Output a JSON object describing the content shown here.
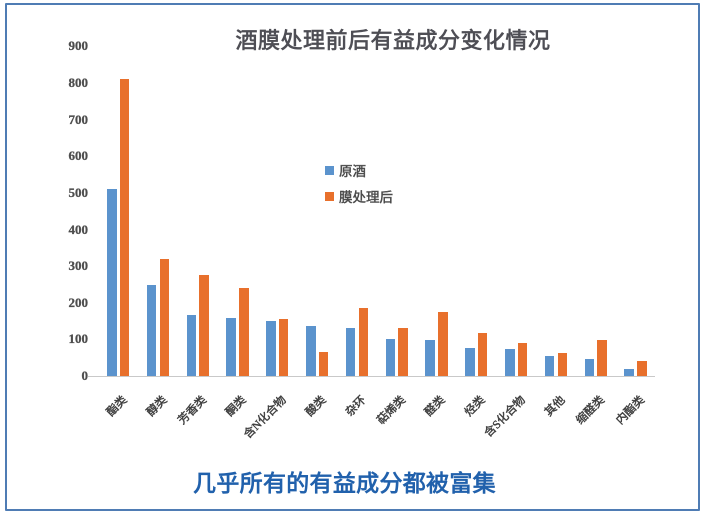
{
  "chart_data": {
    "type": "bar",
    "title": "酒膜处理前后有益成分变化情况",
    "categories": [
      "酯类",
      "醇类",
      "芳香类",
      "酮类",
      "含N化合物",
      "酸类",
      "杂环",
      "萜烯类",
      "醛类",
      "烃类",
      "含S化合物",
      "其他",
      "缩醛类",
      "内酯类"
    ],
    "series": [
      {
        "name": "原酒",
        "color": "#5b93cd",
        "values": [
          510,
          248,
          166,
          158,
          150,
          136,
          132,
          102,
          97,
          77,
          75,
          55,
          47,
          18
        ]
      },
      {
        "name": "膜处理后",
        "color": "#e8702c",
        "values": [
          812,
          320,
          277,
          240,
          157,
          66,
          186,
          130,
          174,
          117,
          91,
          64,
          98,
          42
        ]
      }
    ],
    "xlabel": "",
    "ylabel": "",
    "ylim": [
      0,
      900
    ],
    "ytick_step": 100,
    "grid": false,
    "legend_position": "inside-upper-middle-left"
  },
  "caption": {
    "text": "几乎所有的有益成分都被富集",
    "color": "#2161ac"
  },
  "frame_border_color": "#4f7cb4"
}
